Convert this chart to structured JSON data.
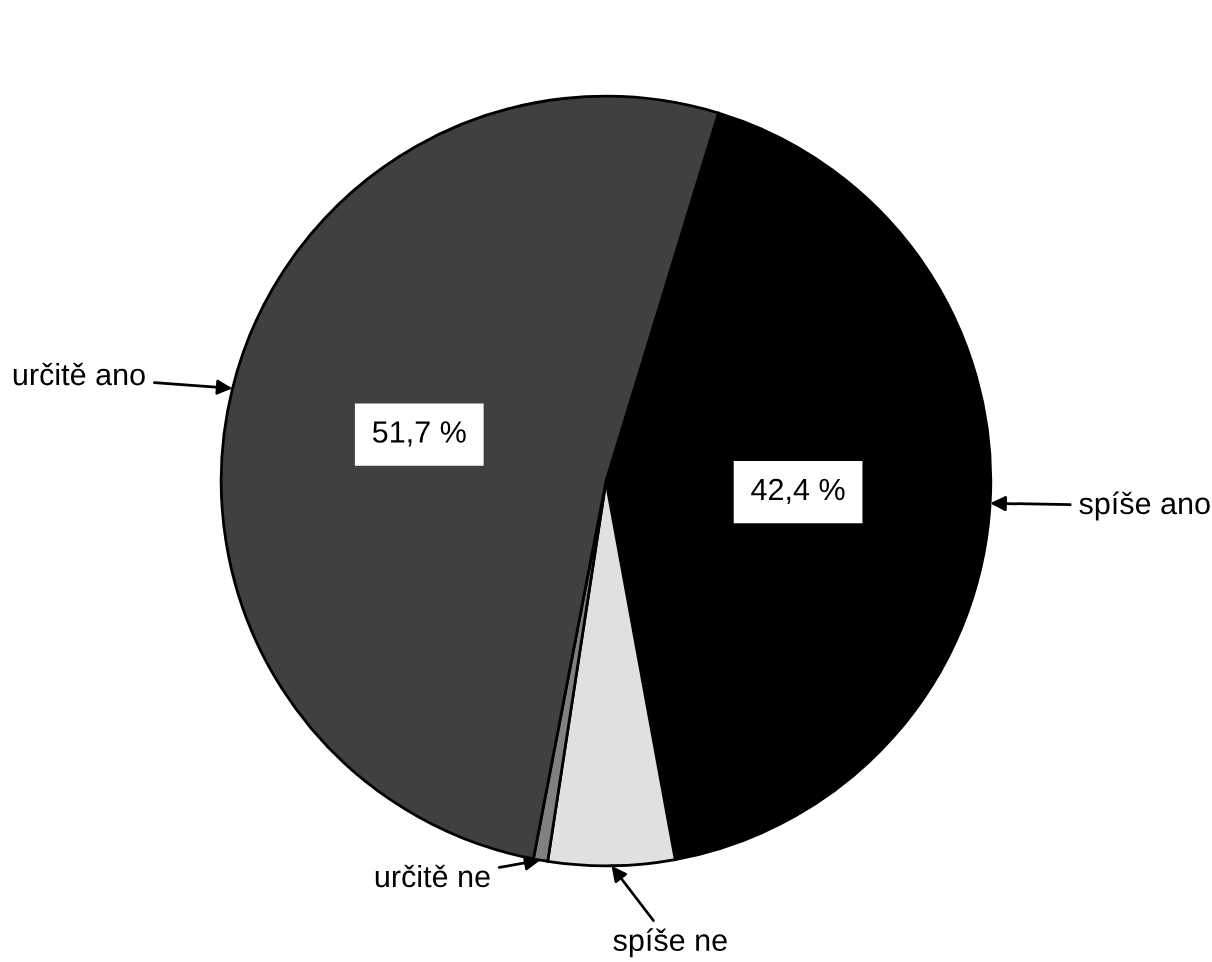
{
  "chart_data": {
    "type": "pie",
    "categories": [
      "spíše ano",
      "spíše ne",
      "určitě ne",
      "určitě ano"
    ],
    "values": [
      42.4,
      5.3,
      0.6,
      51.7
    ],
    "colors": [
      "#000000",
      "#e0e0e0",
      "#808080",
      "#404040"
    ],
    "value_labels": [
      "42,4 %",
      null,
      null,
      "51,7 %"
    ]
  }
}
